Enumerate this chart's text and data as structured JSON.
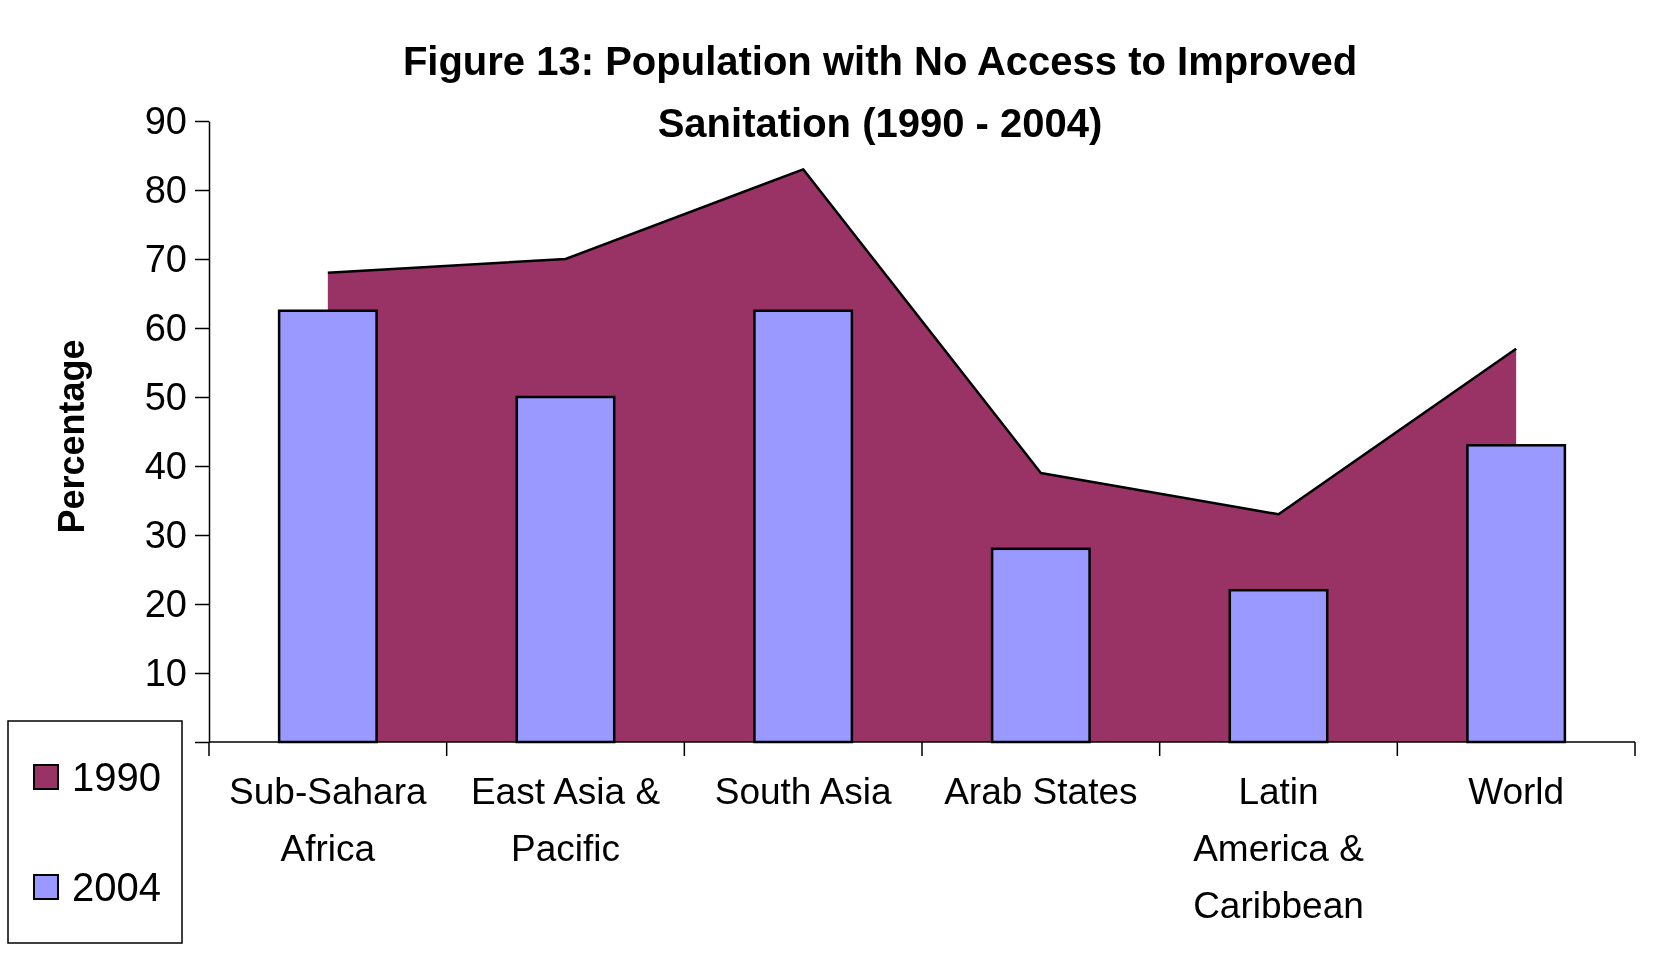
{
  "chart_data": {
    "type": "bar",
    "title": "Figure 13: Population with No Access to Improved Sanitation (1990 - 2004)",
    "ylabel": "Percentage",
    "categories": [
      "Sub-Sahara Africa",
      "East Asia & Pacific",
      "South Asia",
      "Arab States",
      "Latin America & Caribbean",
      "World"
    ],
    "series": [
      {
        "name": "1990",
        "type": "area",
        "color": "#993366",
        "values": [
          68,
          70,
          83,
          39,
          33,
          57
        ]
      },
      {
        "name": "2004",
        "color": "#9999ff",
        "values": [
          62.5,
          50,
          62.5,
          28,
          22,
          43
        ]
      }
    ],
    "ylim": [
      0,
      90
    ],
    "yticks": [
      {
        "value": 0,
        "label": null
      },
      10,
      20,
      30,
      40,
      50,
      60,
      70,
      80,
      90
    ],
    "grid": false,
    "legend": "bottom left"
  }
}
